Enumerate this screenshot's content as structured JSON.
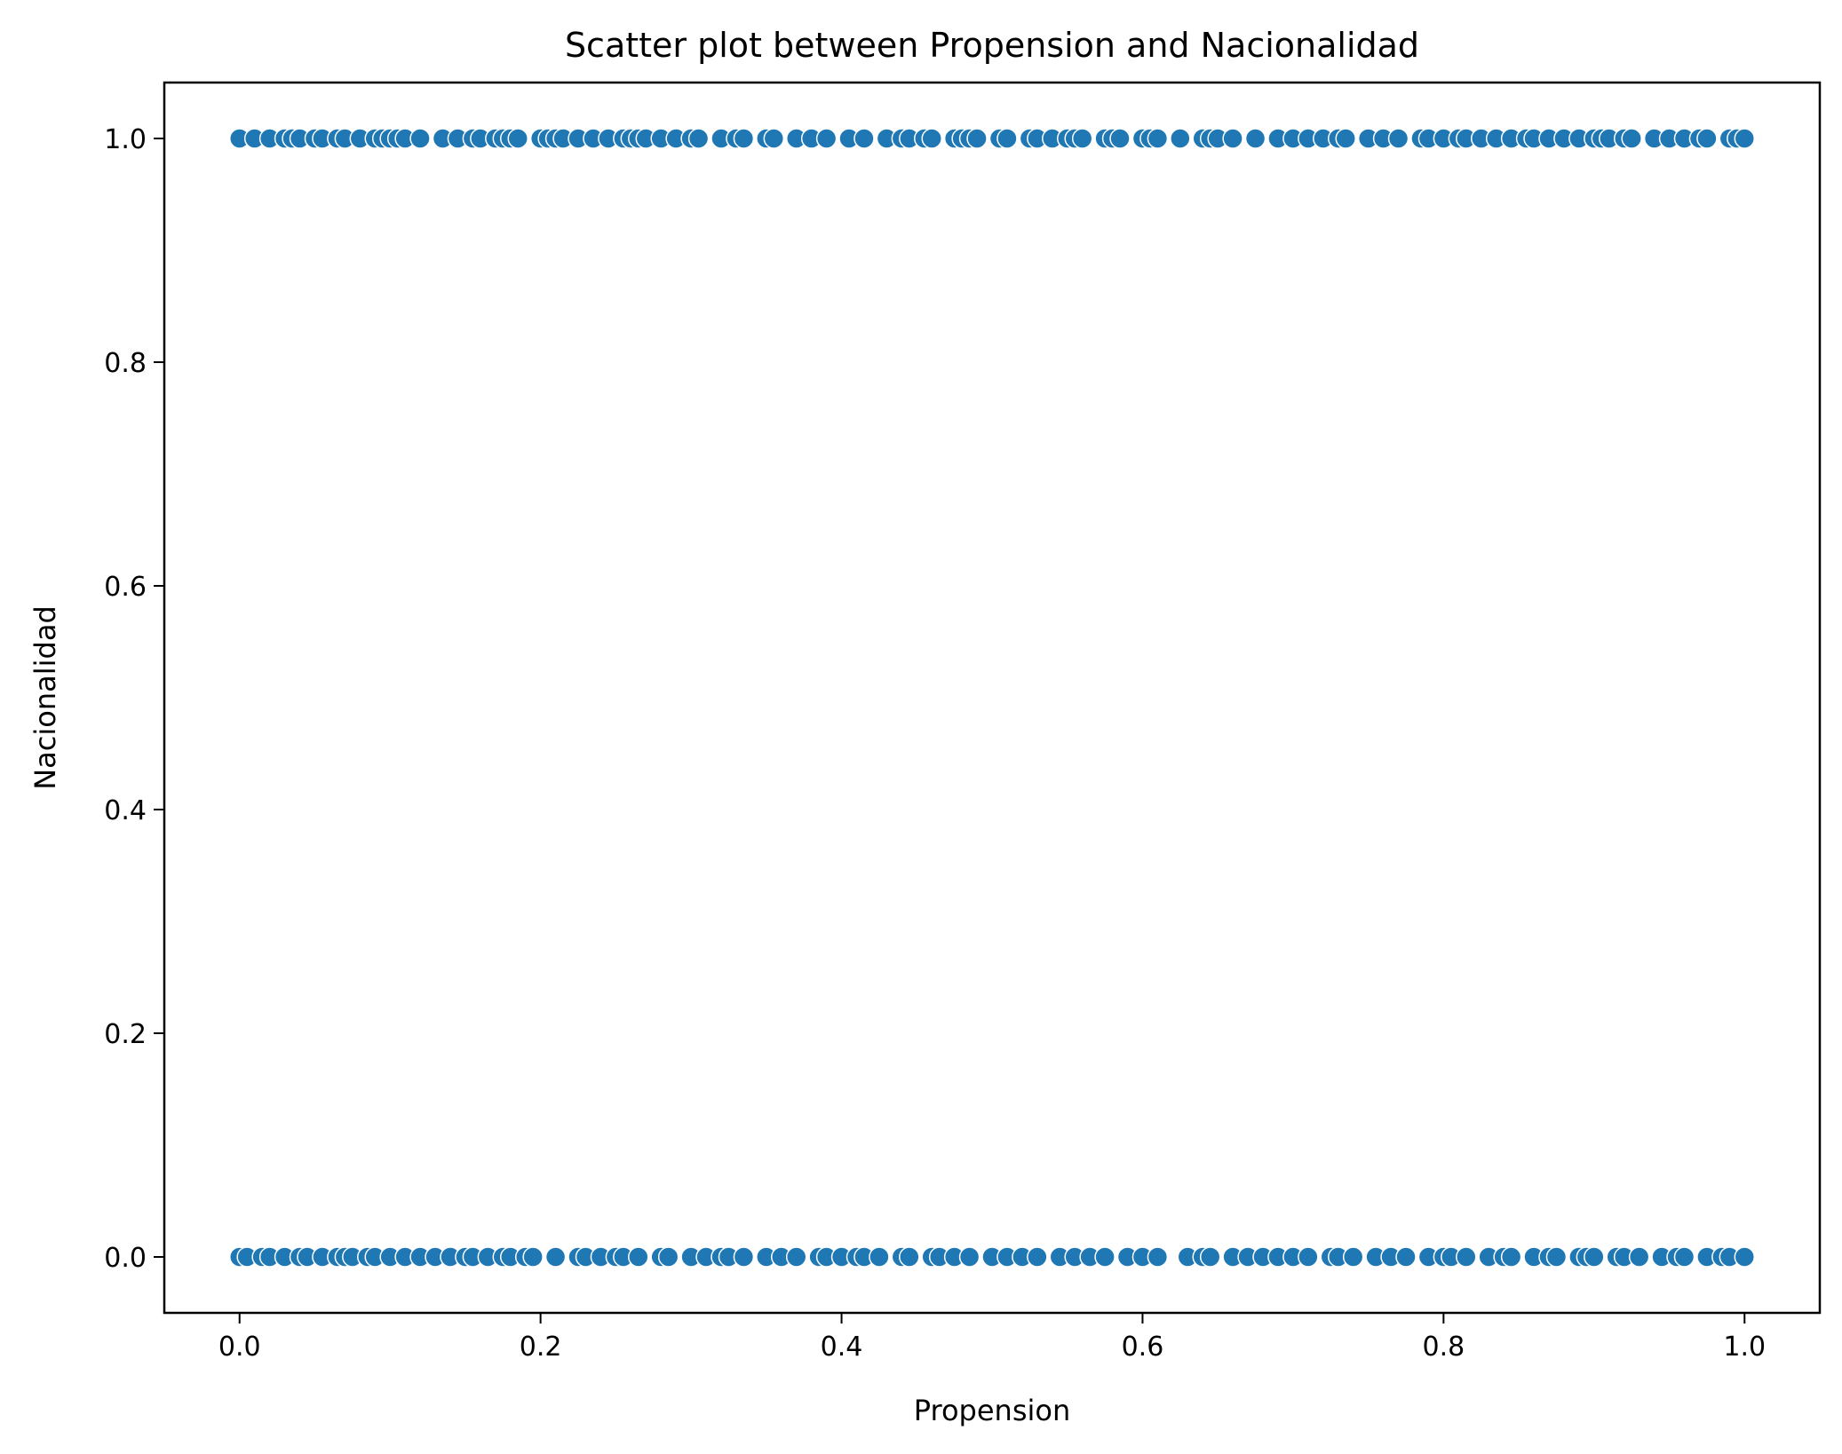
{
  "chart_data": {
    "type": "scatter",
    "title": "Scatter plot between Propension and Nacionalidad",
    "xlabel": "Propension",
    "ylabel": "Nacionalidad",
    "xlim": [
      -0.05,
      1.05
    ],
    "ylim": [
      -0.05,
      1.05
    ],
    "xticks": [
      "0.0",
      "0.2",
      "0.4",
      "0.6",
      "0.8",
      "1.0"
    ],
    "yticks": [
      "0.0",
      "0.2",
      "0.4",
      "0.6",
      "0.8",
      "1.0"
    ],
    "grid": false,
    "marker_color": "#1f77b4",
    "series": [
      {
        "x": [
          0.0,
          0.01,
          0.02,
          0.03,
          0.035,
          0.04,
          0.05,
          0.055,
          0.065,
          0.07,
          0.08,
          0.09,
          0.095,
          0.1,
          0.105,
          0.11,
          0.12,
          0.135,
          0.145,
          0.155,
          0.16,
          0.17,
          0.175,
          0.18,
          0.185,
          0.2,
          0.205,
          0.21,
          0.215,
          0.225,
          0.235,
          0.245,
          0.255,
          0.26,
          0.265,
          0.27,
          0.28,
          0.29,
          0.3,
          0.305,
          0.32,
          0.33,
          0.335,
          0.35,
          0.355,
          0.37,
          0.38,
          0.39,
          0.405,
          0.415,
          0.43,
          0.44,
          0.445,
          0.455,
          0.46,
          0.475,
          0.48,
          0.485,
          0.49,
          0.505,
          0.51,
          0.525,
          0.53,
          0.54,
          0.55,
          0.555,
          0.56,
          0.575,
          0.58,
          0.585,
          0.6,
          0.605,
          0.61,
          0.625,
          0.64,
          0.645,
          0.65,
          0.66,
          0.675,
          0.69,
          0.7,
          0.71,
          0.72,
          0.73,
          0.735,
          0.75,
          0.76,
          0.77,
          0.785,
          0.79,
          0.8,
          0.81,
          0.815,
          0.825,
          0.835,
          0.845,
          0.855,
          0.86,
          0.87,
          0.88,
          0.89,
          0.9,
          0.905,
          0.91,
          0.92,
          0.925,
          0.94,
          0.95,
          0.96,
          0.97,
          0.975,
          0.99,
          0.995,
          1.0
        ],
        "y": [
          1,
          1,
          1,
          1,
          1,
          1,
          1,
          1,
          1,
          1,
          1,
          1,
          1,
          1,
          1,
          1,
          1,
          1,
          1,
          1,
          1,
          1,
          1,
          1,
          1,
          1,
          1,
          1,
          1,
          1,
          1,
          1,
          1,
          1,
          1,
          1,
          1,
          1,
          1,
          1,
          1,
          1,
          1,
          1,
          1,
          1,
          1,
          1,
          1,
          1,
          1,
          1,
          1,
          1,
          1,
          1,
          1,
          1,
          1,
          1,
          1,
          1,
          1,
          1,
          1,
          1,
          1,
          1,
          1,
          1,
          1,
          1,
          1,
          1,
          1,
          1,
          1,
          1,
          1,
          1,
          1,
          1,
          1,
          1,
          1,
          1,
          1,
          1,
          1,
          1,
          1,
          1,
          1,
          1,
          1,
          1,
          1,
          1,
          1,
          1,
          1,
          1,
          1,
          1,
          1,
          1,
          1,
          1,
          1,
          1,
          1,
          1,
          1,
          1
        ]
      },
      {
        "x": [
          0.0,
          0.005,
          0.015,
          0.02,
          0.03,
          0.04,
          0.045,
          0.055,
          0.065,
          0.07,
          0.075,
          0.085,
          0.09,
          0.1,
          0.11,
          0.12,
          0.13,
          0.14,
          0.15,
          0.155,
          0.165,
          0.175,
          0.18,
          0.19,
          0.195,
          0.21,
          0.225,
          0.23,
          0.24,
          0.25,
          0.255,
          0.265,
          0.28,
          0.285,
          0.3,
          0.31,
          0.32,
          0.325,
          0.335,
          0.35,
          0.36,
          0.37,
          0.385,
          0.39,
          0.4,
          0.41,
          0.415,
          0.425,
          0.44,
          0.445,
          0.46,
          0.465,
          0.475,
          0.485,
          0.5,
          0.51,
          0.52,
          0.53,
          0.545,
          0.555,
          0.565,
          0.575,
          0.59,
          0.6,
          0.61,
          0.63,
          0.64,
          0.645,
          0.66,
          0.67,
          0.68,
          0.69,
          0.7,
          0.71,
          0.725,
          0.73,
          0.74,
          0.755,
          0.765,
          0.775,
          0.79,
          0.8,
          0.805,
          0.815,
          0.83,
          0.84,
          0.845,
          0.86,
          0.87,
          0.875,
          0.89,
          0.895,
          0.9,
          0.915,
          0.92,
          0.93,
          0.945,
          0.955,
          0.96,
          0.975,
          0.985,
          0.99,
          1.0
        ],
        "y": [
          0,
          0,
          0,
          0,
          0,
          0,
          0,
          0,
          0,
          0,
          0,
          0,
          0,
          0,
          0,
          0,
          0,
          0,
          0,
          0,
          0,
          0,
          0,
          0,
          0,
          0,
          0,
          0,
          0,
          0,
          0,
          0,
          0,
          0,
          0,
          0,
          0,
          0,
          0,
          0,
          0,
          0,
          0,
          0,
          0,
          0,
          0,
          0,
          0,
          0,
          0,
          0,
          0,
          0,
          0,
          0,
          0,
          0,
          0,
          0,
          0,
          0,
          0,
          0,
          0,
          0,
          0,
          0,
          0,
          0,
          0,
          0,
          0,
          0,
          0,
          0,
          0,
          0,
          0,
          0,
          0,
          0,
          0,
          0,
          0,
          0,
          0,
          0,
          0,
          0,
          0,
          0,
          0,
          0,
          0,
          0,
          0,
          0,
          0,
          0,
          0,
          0,
          0
        ]
      }
    ]
  }
}
